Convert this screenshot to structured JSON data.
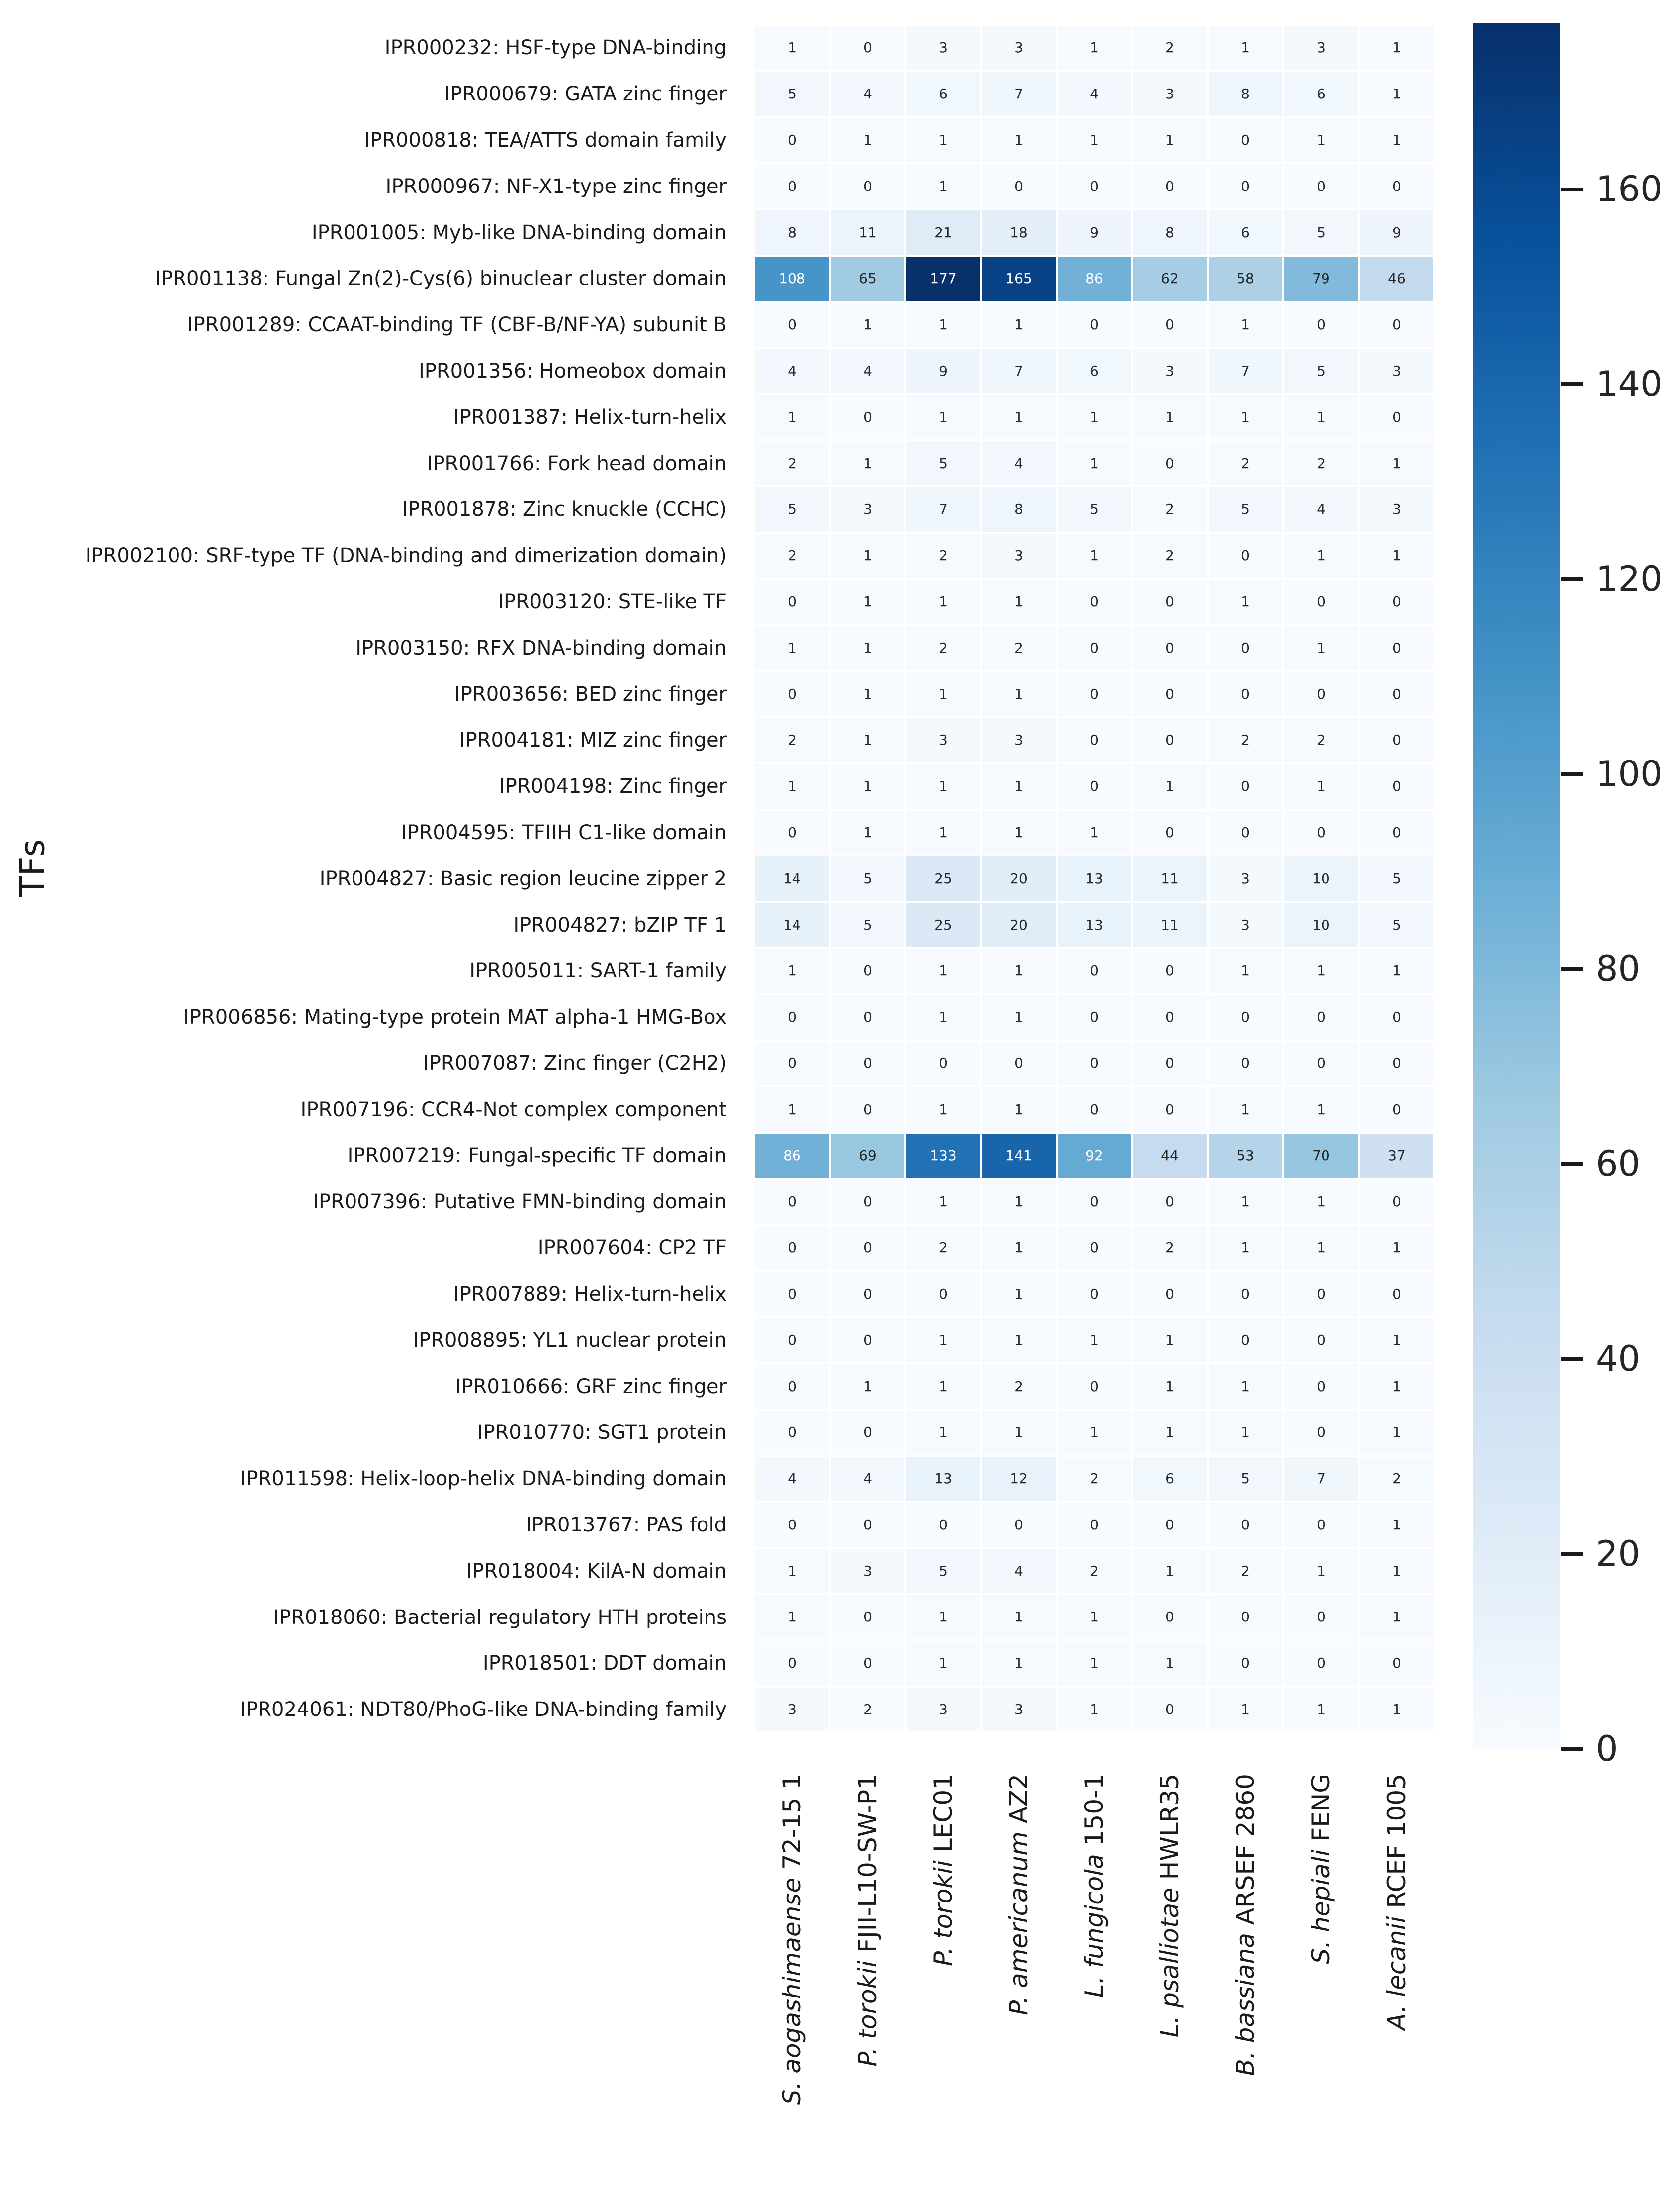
{
  "chart_data": {
    "type": "heatmap",
    "title": "",
    "xlabel": "",
    "ylabel": "TFs",
    "annotations": true,
    "colormap": "Blues",
    "colormap_anchors": [
      "#f7fbff",
      "#deebf7",
      "#c6dbef",
      "#9ecae1",
      "#6baed6",
      "#4292c6",
      "#2171b5",
      "#08519c",
      "#08306b"
    ],
    "grid_line_color": "#ffffff",
    "annotation_dark_color": "#262626",
    "annotation_light_color": "#ffffff",
    "vmin": 0,
    "vmax": 177,
    "colorbar": {
      "position": "right",
      "ticks": [
        0,
        20,
        40,
        60,
        80,
        100,
        120,
        140,
        160
      ]
    },
    "rows": [
      "IPR000232: HSF-type DNA-binding",
      "IPR000679: GATA zinc finger",
      "IPR000818: TEA/ATTS domain family",
      "IPR000967: NF-X1-type zinc finger",
      "IPR001005: Myb-like DNA-binding domain",
      "IPR001138: Fungal Zn(2)-Cys(6) binuclear cluster domain",
      "IPR001289: CCAAT-binding TF (CBF-B/NF-YA) subunit B",
      "IPR001356: Homeobox domain",
      "IPR001387: Helix-turn-helix",
      "IPR001766: Fork head domain",
      "IPR001878: Zinc knuckle (CCHC)",
      "IPR002100: SRF-type TF (DNA-binding and dimerization domain)",
      "IPR003120: STE-like TF",
      "IPR003150: RFX DNA-binding domain",
      "IPR003656: BED zinc finger",
      "IPR004181: MIZ zinc finger",
      "IPR004198: Zinc finger",
      "IPR004595: TFIIH C1-like domain",
      "IPR004827: Basic region leucine zipper 2",
      "IPR004827: bZIP TF 1",
      "IPR005011: SART-1 family",
      "IPR006856: Mating-type protein MAT alpha-1 HMG-Box",
      "IPR007087: Zinc finger (C2H2)",
      "IPR007196: CCR4-Not complex component",
      "IPR007219: Fungal-specific TF domain",
      "IPR007396: Putative FMN-binding domain",
      "IPR007604: CP2 TF",
      "IPR007889: Helix-turn-helix",
      "IPR008895: YL1 nuclear protein",
      "IPR010666: GRF zinc finger",
      "IPR010770: SGT1 protein",
      "IPR011598: Helix-loop-helix DNA-binding domain",
      "IPR013767: PAS fold",
      "IPR018004: KilA-N domain",
      "IPR018060: Bacterial regulatory HTH proteins",
      "IPR018501: DDT domain",
      "IPR024061: NDT80/PhoG-like DNA-binding family"
    ],
    "columns": [
      {
        "species": "S. aogashimaense",
        "strain": "72-15 1"
      },
      {
        "species": "P. torokii",
        "strain": "FJII-L10-SW-P1"
      },
      {
        "species": "P. torokii",
        "strain": "LEC01"
      },
      {
        "species": "P. americanum",
        "strain": "AZ2"
      },
      {
        "species": "L. fungicola",
        "strain": "150-1"
      },
      {
        "species": "L. psalliotae",
        "strain": "HWLR35"
      },
      {
        "species": "B. bassiana",
        "strain": "ARSEF 2860"
      },
      {
        "species": "S. hepiali",
        "strain": "FENG"
      },
      {
        "species": "A. lecanii",
        "strain": "RCEF 1005"
      }
    ],
    "values": [
      [
        1,
        0,
        3,
        3,
        1,
        2,
        1,
        3,
        1
      ],
      [
        5,
        4,
        6,
        7,
        4,
        3,
        8,
        6,
        1
      ],
      [
        0,
        1,
        1,
        1,
        1,
        1,
        0,
        1,
        1
      ],
      [
        0,
        0,
        1,
        0,
        0,
        0,
        0,
        0,
        0
      ],
      [
        8,
        11,
        21,
        18,
        9,
        8,
        6,
        5,
        9
      ],
      [
        108,
        65,
        177,
        165,
        86,
        62,
        58,
        79,
        46
      ],
      [
        0,
        1,
        1,
        1,
        0,
        0,
        1,
        0,
        0
      ],
      [
        4,
        4,
        9,
        7,
        6,
        3,
        7,
        5,
        3
      ],
      [
        1,
        0,
        1,
        1,
        1,
        1,
        1,
        1,
        0
      ],
      [
        2,
        1,
        5,
        4,
        1,
        0,
        2,
        2,
        1
      ],
      [
        5,
        3,
        7,
        8,
        5,
        2,
        5,
        4,
        3
      ],
      [
        2,
        1,
        2,
        3,
        1,
        2,
        0,
        1,
        1
      ],
      [
        0,
        1,
        1,
        1,
        0,
        0,
        1,
        0,
        0
      ],
      [
        1,
        1,
        2,
        2,
        0,
        0,
        0,
        1,
        0
      ],
      [
        0,
        1,
        1,
        1,
        0,
        0,
        0,
        0,
        0
      ],
      [
        2,
        1,
        3,
        3,
        0,
        0,
        2,
        2,
        0
      ],
      [
        1,
        1,
        1,
        1,
        0,
        1,
        0,
        1,
        0
      ],
      [
        0,
        1,
        1,
        1,
        1,
        0,
        0,
        0,
        0
      ],
      [
        14,
        5,
        25,
        20,
        13,
        11,
        3,
        10,
        5
      ],
      [
        14,
        5,
        25,
        20,
        13,
        11,
        3,
        10,
        5
      ],
      [
        1,
        0,
        1,
        1,
        0,
        0,
        1,
        1,
        1
      ],
      [
        0,
        0,
        1,
        1,
        0,
        0,
        0,
        0,
        0
      ],
      [
        0,
        0,
        0,
        0,
        0,
        0,
        0,
        0,
        0
      ],
      [
        1,
        0,
        1,
        1,
        0,
        0,
        1,
        1,
        0
      ],
      [
        86,
        69,
        133,
        141,
        92,
        44,
        53,
        70,
        37
      ],
      [
        0,
        0,
        1,
        1,
        0,
        0,
        1,
        1,
        0
      ],
      [
        0,
        0,
        2,
        1,
        0,
        2,
        1,
        1,
        1
      ],
      [
        0,
        0,
        0,
        1,
        0,
        0,
        0,
        0,
        0
      ],
      [
        0,
        0,
        1,
        1,
        1,
        1,
        0,
        0,
        1
      ],
      [
        0,
        1,
        1,
        2,
        0,
        1,
        1,
        0,
        1
      ],
      [
        0,
        0,
        1,
        1,
        1,
        1,
        1,
        0,
        1
      ],
      [
        4,
        4,
        13,
        12,
        2,
        6,
        5,
        7,
        2
      ],
      [
        0,
        0,
        0,
        0,
        0,
        0,
        0,
        0,
        1
      ],
      [
        1,
        3,
        5,
        4,
        2,
        1,
        2,
        1,
        1
      ],
      [
        1,
        0,
        1,
        1,
        1,
        0,
        0,
        0,
        1
      ],
      [
        0,
        0,
        1,
        1,
        1,
        1,
        0,
        0,
        0
      ],
      [
        3,
        2,
        3,
        3,
        1,
        0,
        1,
        1,
        1
      ]
    ]
  }
}
